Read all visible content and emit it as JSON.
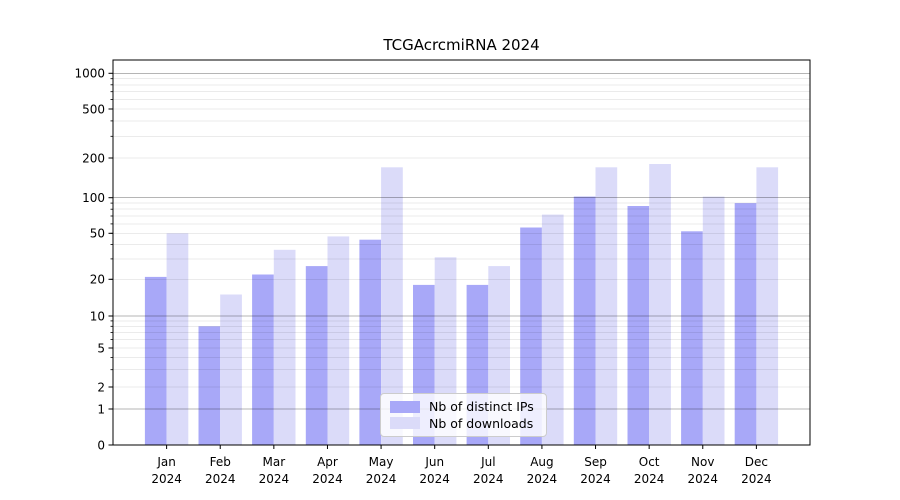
{
  "title": "TCGAcrcmiRNA 2024",
  "chart_data": {
    "type": "bar",
    "title": "TCGAcrcmiRNA 2024",
    "categories": [
      "Jan",
      "Feb",
      "Mar",
      "Apr",
      "May",
      "Jun",
      "Jul",
      "Aug",
      "Sep",
      "Oct",
      "Nov",
      "Dec"
    ],
    "category_year": "2024",
    "series": [
      {
        "name": "Nb of distinct IPs",
        "color": "#a8a8f8",
        "values": [
          21,
          8,
          22,
          26,
          44,
          18,
          18,
          56,
          102,
          85,
          52,
          90
        ]
      },
      {
        "name": "Nb of downloads",
        "color": "#dbdbf9",
        "values": [
          50,
          15,
          36,
          47,
          170,
          31,
          26,
          72,
          170,
          180,
          102,
          170
        ]
      }
    ],
    "yscale": "symlog",
    "yticks": [
      0,
      1,
      2,
      5,
      10,
      20,
      50,
      100,
      200,
      500,
      1000
    ],
    "ylim": [
      0,
      1300
    ],
    "xlabel": "",
    "ylabel": "",
    "grid": "on",
    "grid_above_bars": true,
    "legend_position": "lower center",
    "axis_color": "#000000",
    "major_grid_color": "rgba(0,0,0,0.29)",
    "minor_grid_color": "rgba(0,0,0,0.08)"
  }
}
